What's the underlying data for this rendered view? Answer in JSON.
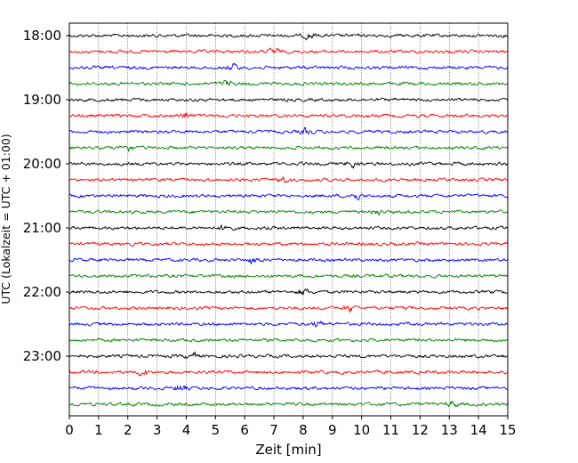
{
  "chart_data": {
    "type": "line",
    "title": "",
    "xlabel": "Zeit  [min]",
    "ylabel": "UTC (Lokalzeit = UTC + 01:00)",
    "xlim": [
      0,
      15
    ],
    "x_ticks": [
      "0",
      "1",
      "2",
      "3",
      "4",
      "5",
      "6",
      "7",
      "8",
      "9",
      "10",
      "11",
      "12",
      "13",
      "14",
      "15"
    ],
    "y_ticks": [
      "18:00",
      "19:00",
      "20:00",
      "21:00",
      "22:00",
      "23:00"
    ],
    "grid": "vertical dotted",
    "trace_interval_min": 15,
    "start_time": "18:00",
    "trace_count": 24,
    "trace_colors": [
      "#000000",
      "#ff0000",
      "#0000ff",
      "#007f00"
    ],
    "bursts": [
      {
        "trace": 0,
        "minute": 8.2
      },
      {
        "trace": 1,
        "minute": 7.0
      },
      {
        "trace": 2,
        "minute": 5.6
      },
      {
        "trace": 3,
        "minute": 5.4
      },
      {
        "trace": 5,
        "minute": 4.0
      },
      {
        "trace": 6,
        "minute": 8.1
      },
      {
        "trace": 7,
        "minute": 2.0
      },
      {
        "trace": 8,
        "minute": 9.7
      },
      {
        "trace": 9,
        "minute": 7.3
      },
      {
        "trace": 10,
        "minute": 9.8
      },
      {
        "trace": 11,
        "minute": 10.5
      },
      {
        "trace": 12,
        "minute": 5.3
      },
      {
        "trace": 14,
        "minute": 6.3
      },
      {
        "trace": 16,
        "minute": 8.0
      },
      {
        "trace": 17,
        "minute": 9.6
      },
      {
        "trace": 18,
        "minute": 8.5
      },
      {
        "trace": 20,
        "minute": 4.2
      },
      {
        "trace": 21,
        "minute": 2.5
      },
      {
        "trace": 22,
        "minute": 3.8
      },
      {
        "trace": 23,
        "minute": 13.1
      }
    ]
  }
}
